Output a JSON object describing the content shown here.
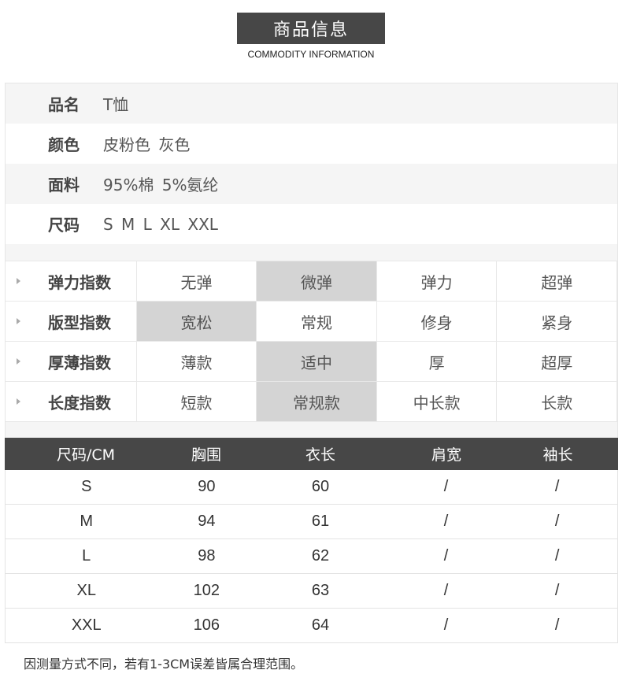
{
  "header": {
    "title": "商品信息",
    "subtitle": "COMMODITY INFORMATION"
  },
  "info": [
    {
      "label": "品名",
      "value": "T恤"
    },
    {
      "label": "颜色",
      "value": "皮粉色 灰色"
    },
    {
      "label": "面料",
      "value": "95%棉 5%氨纶"
    },
    {
      "label": "尺码",
      "value": "S  M  L XL XXL"
    }
  ],
  "indices": [
    {
      "label": "弹力指数",
      "options": [
        "无弹",
        "微弹",
        "弹力",
        "超弹"
      ],
      "selected": "微弹"
    },
    {
      "label": "版型指数",
      "options": [
        "宽松",
        "常规",
        "修身",
        "紧身"
      ],
      "selected": "宽松"
    },
    {
      "label": "厚薄指数",
      "options": [
        "薄款",
        "适中",
        "厚",
        "超厚"
      ],
      "selected": "适中"
    },
    {
      "label": "长度指数",
      "options": [
        "短款",
        "常规款",
        "中长款",
        "长款"
      ],
      "selected": "常规款"
    }
  ],
  "size_table": {
    "headers": [
      "尺码/CM",
      "胸围",
      "衣长",
      "肩宽",
      "袖长"
    ],
    "rows": [
      [
        "S",
        "90",
        "60",
        "/",
        "/"
      ],
      [
        "M",
        "94",
        "61",
        "/",
        "/"
      ],
      [
        "L",
        "98",
        "62",
        "/",
        "/"
      ],
      [
        "XL",
        "102",
        "63",
        "/",
        "/"
      ],
      [
        "XXL",
        "106",
        "64",
        "/",
        "/"
      ]
    ]
  },
  "note": "因测量方式不同，若有1-3CM误差皆属合理范围。",
  "colors": {
    "dark": "#474747",
    "selected": "#d4d4d4",
    "stripe": "#f5f5f5"
  }
}
